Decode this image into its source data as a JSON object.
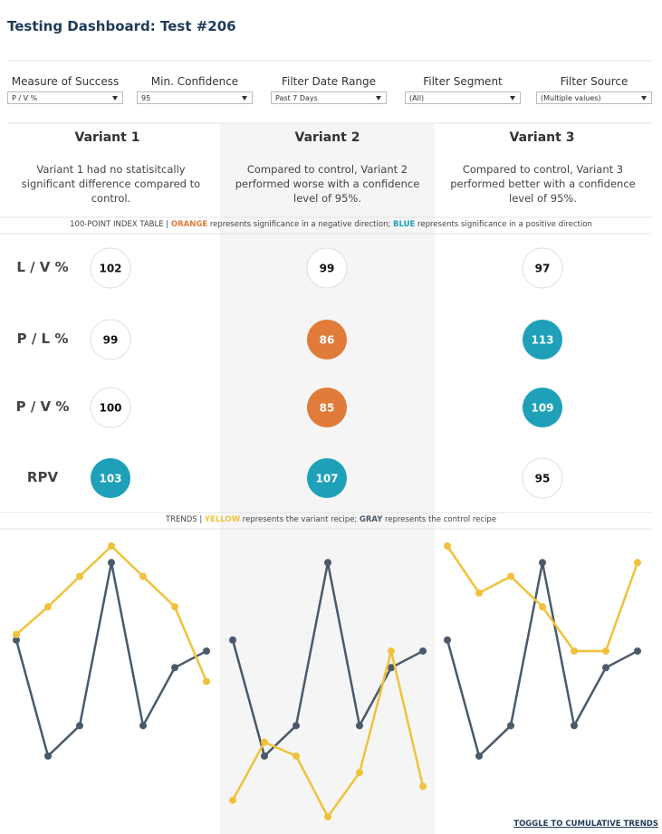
{
  "header": {
    "title": "Testing Dashboard: Test #206"
  },
  "filters": [
    {
      "label": "Measure of Success",
      "value": "P / V %"
    },
    {
      "label": "Min. Confidence",
      "value": "95"
    },
    {
      "label": "Filter Date Range",
      "value": "Past 7 Days"
    },
    {
      "label": "Filter Segment",
      "value": "(All)"
    },
    {
      "label": "Filter Source",
      "value": "(Multiple values)"
    }
  ],
  "variants": [
    {
      "name": "Variant 1",
      "summary": "Variant 1 had no statisitcally significant difference compared to control."
    },
    {
      "name": "Variant 2",
      "summary": "Compared to control, Variant 2 performed worse with a confidence level of 95%."
    },
    {
      "name": "Variant 3",
      "summary": "Compared to control, Variant 3 performed better with a confidence level of 95%."
    }
  ],
  "index_note": [
    {
      "text": "100-POINT INDEX TABLE | "
    },
    {
      "text": "ORANGE",
      "color": "#e07b39"
    },
    {
      "text": " represents significance in a negative direction; "
    },
    {
      "text": "BLUE",
      "color": "#1ea1b8"
    },
    {
      "text": " represents significance in a positive direction"
    }
  ],
  "index_table": {
    "metrics": [
      "L / V %",
      "P / L %",
      "P / V %",
      "RPV"
    ],
    "rows": [
      [
        {
          "value": 102
        },
        {
          "value": 99
        },
        {
          "value": 97
        }
      ],
      [
        {
          "value": 99
        },
        {
          "value": 86,
          "color": "#e07b39"
        },
        {
          "value": 113,
          "color": "#1ea1b8"
        }
      ],
      [
        {
          "value": 100
        },
        {
          "value": 85,
          "color": "#e07b39"
        },
        {
          "value": 109,
          "color": "#1ea1b8"
        }
      ],
      [
        {
          "value": 103,
          "color": "#1ea1b8"
        },
        {
          "value": 107,
          "color": "#1ea1b8"
        },
        {
          "value": 95
        }
      ]
    ]
  },
  "trends_note": [
    {
      "text": "TRENDS | "
    },
    {
      "text": "YELLOW",
      "color": "#f0c23b"
    },
    {
      "text": " represents the variant recipe; "
    },
    {
      "text": "GRAY",
      "color": "#4a5a6a"
    },
    {
      "text": " represents the control recipe"
    }
  ],
  "trends": {
    "type": "line",
    "control": {
      "color": "#4a5a6a",
      "values": [
        65,
        23,
        34,
        93,
        34,
        55,
        61
      ]
    },
    "variants": [
      {
        "color": "#f0c23b",
        "values": [
          67,
          77,
          88,
          99,
          88,
          77,
          50
        ]
      },
      {
        "color": "#f0c23b",
        "values": [
          7,
          28,
          23,
          1,
          17,
          61,
          12
        ]
      },
      {
        "color": "#f0c23b",
        "values": [
          99,
          82,
          88,
          77,
          61,
          61,
          93
        ]
      }
    ]
  },
  "toggle": "TOGGLE TO CUMULATIVE TRENDS"
}
